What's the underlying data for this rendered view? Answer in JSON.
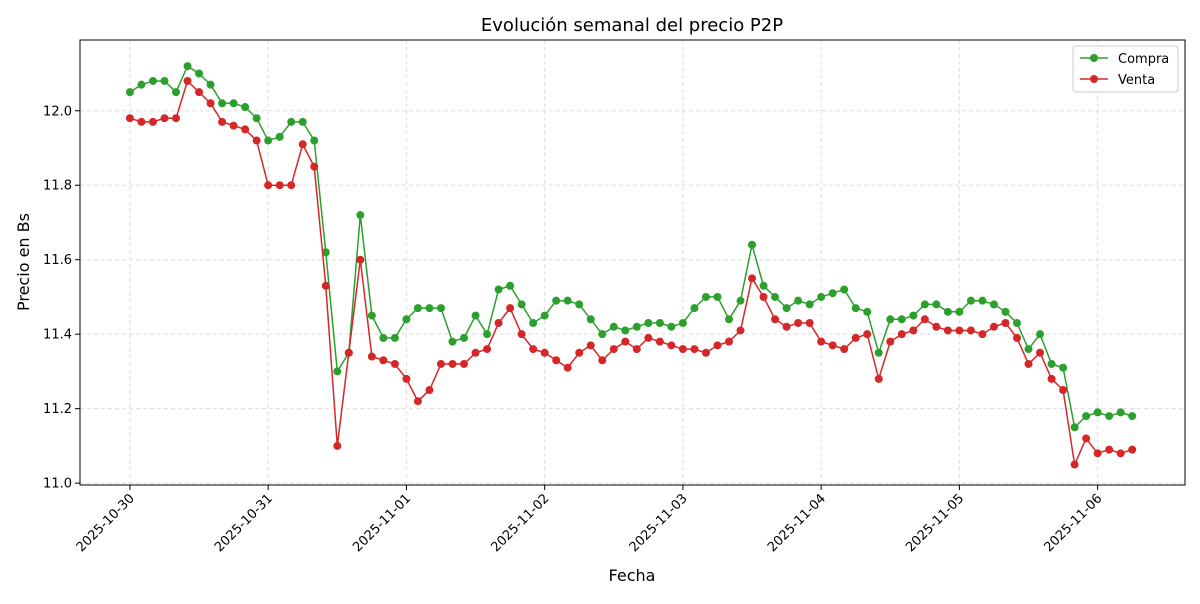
{
  "chart_data": {
    "type": "line",
    "title": "Evolución semanal del precio P2P",
    "xlabel": "Fecha",
    "ylabel": "Precio en Bs",
    "ylim": [
      10.995,
      12.19
    ],
    "xlim": [
      "2025-10-29 15:20",
      "2025-11-06 15:10"
    ],
    "yticks": [
      "11.0",
      "11.2",
      "11.4",
      "11.6",
      "11.8",
      "12.0"
    ],
    "xticks": [
      "2025-10-30",
      "2025-10-31",
      "2025-11-01",
      "2025-11-02",
      "2025-11-03",
      "2025-11-04",
      "2025-11-05",
      "2025-11-06"
    ],
    "grid": true,
    "legend_position": "top-right",
    "x": [
      "2025-10-30 00:00",
      "2025-10-30 02:00",
      "2025-10-30 04:00",
      "2025-10-30 06:00",
      "2025-10-30 08:00",
      "2025-10-30 10:00",
      "2025-10-30 12:00",
      "2025-10-30 14:00",
      "2025-10-30 16:00",
      "2025-10-30 18:00",
      "2025-10-30 20:00",
      "2025-10-30 22:00",
      "2025-10-31 00:00",
      "2025-10-31 02:00",
      "2025-10-31 04:00",
      "2025-10-31 06:00",
      "2025-10-31 08:00",
      "2025-10-31 10:00",
      "2025-10-31 12:00",
      "2025-10-31 14:00",
      "2025-10-31 16:00",
      "2025-10-31 18:00",
      "2025-10-31 20:00",
      "2025-10-31 22:00",
      "2025-11-01 00:00",
      "2025-11-01 02:00",
      "2025-11-01 04:00",
      "2025-11-01 06:00",
      "2025-11-01 08:00",
      "2025-11-01 10:00",
      "2025-11-01 12:00",
      "2025-11-01 14:00",
      "2025-11-01 16:00",
      "2025-11-01 18:00",
      "2025-11-01 20:00",
      "2025-11-01 22:00",
      "2025-11-02 00:00",
      "2025-11-02 02:00",
      "2025-11-02 04:00",
      "2025-11-02 06:00",
      "2025-11-02 08:00",
      "2025-11-02 10:00",
      "2025-11-02 12:00",
      "2025-11-02 14:00",
      "2025-11-02 16:00",
      "2025-11-02 18:00",
      "2025-11-02 20:00",
      "2025-11-02 22:00",
      "2025-11-03 00:00",
      "2025-11-03 02:00",
      "2025-11-03 04:00",
      "2025-11-03 06:00",
      "2025-11-03 08:00",
      "2025-11-03 10:00",
      "2025-11-03 12:00",
      "2025-11-03 14:00",
      "2025-11-03 16:00",
      "2025-11-03 18:00",
      "2025-11-03 20:00",
      "2025-11-03 22:00",
      "2025-11-04 00:00",
      "2025-11-04 02:00",
      "2025-11-04 04:00",
      "2025-11-04 06:00",
      "2025-11-04 08:00",
      "2025-11-04 10:00",
      "2025-11-04 12:00",
      "2025-11-04 14:00",
      "2025-11-04 16:00",
      "2025-11-04 18:00",
      "2025-11-04 20:00",
      "2025-11-04 22:00",
      "2025-11-05 00:00",
      "2025-11-05 02:00",
      "2025-11-05 04:00",
      "2025-11-05 06:00",
      "2025-11-05 08:00",
      "2025-11-05 10:00",
      "2025-11-05 12:00",
      "2025-11-05 14:00",
      "2025-11-05 16:00",
      "2025-11-05 18:00",
      "2025-11-05 20:00",
      "2025-11-05 22:00",
      "2025-11-06 00:00",
      "2025-11-06 02:00",
      "2025-11-06 04:00",
      "2025-11-06 06:00"
    ],
    "series": [
      {
        "name": "Compra",
        "color": "#2ca02c",
        "marker": "circle",
        "values": [
          12.05,
          12.07,
          12.08,
          12.08,
          12.05,
          12.12,
          12.1,
          12.07,
          12.02,
          12.02,
          12.01,
          11.98,
          11.92,
          11.93,
          11.97,
          11.97,
          11.92,
          11.62,
          11.3,
          11.35,
          11.72,
          11.45,
          11.39,
          11.39,
          11.44,
          11.47,
          11.47,
          11.47,
          11.38,
          11.39,
          11.45,
          11.4,
          11.52,
          11.53,
          11.48,
          11.43,
          11.45,
          11.49,
          11.49,
          11.48,
          11.44,
          11.4,
          11.42,
          11.41,
          11.42,
          11.43,
          11.43,
          11.42,
          11.43,
          11.47,
          11.5,
          11.5,
          11.44,
          11.49,
          11.64,
          11.53,
          11.5,
          11.47,
          11.49,
          11.48,
          11.5,
          11.51,
          11.52,
          11.47,
          11.46,
          11.35,
          11.44,
          11.44,
          11.45,
          11.48,
          11.48,
          11.46,
          11.46,
          11.49,
          11.49,
          11.48,
          11.46,
          11.43,
          11.36,
          11.4,
          11.32,
          11.31,
          11.15,
          11.18,
          11.19,
          11.18,
          11.19,
          11.18
        ]
      },
      {
        "name": "Venta",
        "color": "#d62728",
        "marker": "circle",
        "values": [
          11.98,
          11.97,
          11.97,
          11.98,
          11.98,
          12.08,
          12.05,
          12.02,
          11.97,
          11.96,
          11.95,
          11.92,
          11.8,
          11.8,
          11.8,
          11.91,
          11.85,
          11.53,
          11.1,
          11.35,
          11.6,
          11.34,
          11.33,
          11.32,
          11.28,
          11.22,
          11.25,
          11.32,
          11.32,
          11.32,
          11.35,
          11.36,
          11.43,
          11.47,
          11.4,
          11.36,
          11.35,
          11.33,
          11.31,
          11.35,
          11.37,
          11.33,
          11.36,
          11.38,
          11.36,
          11.39,
          11.38,
          11.37,
          11.36,
          11.36,
          11.35,
          11.37,
          11.38,
          11.41,
          11.55,
          11.5,
          11.44,
          11.42,
          11.43,
          11.43,
          11.38,
          11.37,
          11.36,
          11.39,
          11.4,
          11.28,
          11.38,
          11.4,
          11.41,
          11.44,
          11.42,
          11.41,
          11.41,
          11.41,
          11.4,
          11.42,
          11.43,
          11.39,
          11.32,
          11.35,
          11.28,
          11.25,
          11.05,
          11.12,
          11.08,
          11.09,
          11.08,
          11.09
        ]
      }
    ]
  }
}
